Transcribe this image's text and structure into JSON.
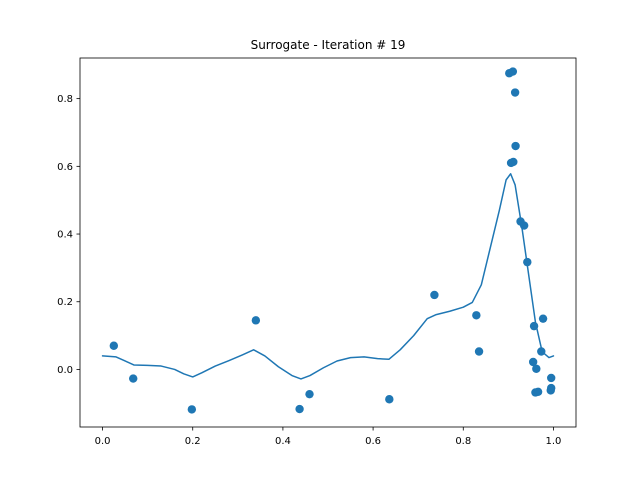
{
  "chart_data": {
    "type": "scatter",
    "title": "Surrogate - Iteration # 19",
    "xlabel": "",
    "ylabel": "",
    "xlim": [
      -0.05,
      1.05
    ],
    "ylim": [
      -0.17,
      0.92
    ],
    "xticks": [
      0.0,
      0.2,
      0.4,
      0.6,
      0.8,
      1.0
    ],
    "xtick_labels": [
      "0.0",
      "0.2",
      "0.4",
      "0.6",
      "0.8",
      "1.0"
    ],
    "yticks": [
      0.0,
      0.2,
      0.4,
      0.6,
      0.8
    ],
    "ytick_labels": [
      "0.0",
      "0.2",
      "0.4",
      "0.6",
      "0.8"
    ],
    "grid": false,
    "colors": {
      "series": "#1f77b4",
      "axes": "#000000",
      "background": "#ffffff"
    },
    "series": [
      {
        "kind": "points",
        "points": [
          {
            "x": 0.025,
            "y": 0.07
          },
          {
            "x": 0.068,
            "y": -0.027
          },
          {
            "x": 0.198,
            "y": -0.118
          },
          {
            "x": 0.34,
            "y": 0.145
          },
          {
            "x": 0.437,
            "y": -0.117
          },
          {
            "x": 0.459,
            "y": -0.073
          },
          {
            "x": 0.636,
            "y": -0.088
          },
          {
            "x": 0.736,
            "y": 0.22
          },
          {
            "x": 0.829,
            "y": 0.16
          },
          {
            "x": 0.835,
            "y": 0.053
          },
          {
            "x": 0.902,
            "y": 0.875
          },
          {
            "x": 0.91,
            "y": 0.88
          },
          {
            "x": 0.906,
            "y": 0.61
          },
          {
            "x": 0.911,
            "y": 0.613
          },
          {
            "x": 0.915,
            "y": 0.818
          },
          {
            "x": 0.916,
            "y": 0.66
          },
          {
            "x": 0.927,
            "y": 0.437
          },
          {
            "x": 0.935,
            "y": 0.425
          },
          {
            "x": 0.942,
            "y": 0.317
          },
          {
            "x": 0.957,
            "y": 0.128
          },
          {
            "x": 0.955,
            "y": 0.022
          },
          {
            "x": 0.962,
            "y": 0.002
          },
          {
            "x": 0.96,
            "y": -0.068
          },
          {
            "x": 0.966,
            "y": -0.066
          },
          {
            "x": 0.973,
            "y": 0.053
          },
          {
            "x": 0.977,
            "y": 0.15
          },
          {
            "x": 0.995,
            "y": -0.025
          },
          {
            "x": 0.995,
            "y": -0.055
          },
          {
            "x": 0.994,
            "y": -0.062
          }
        ]
      },
      {
        "kind": "line",
        "points": [
          {
            "x": 0.0,
            "y": 0.04
          },
          {
            "x": 0.03,
            "y": 0.037
          },
          {
            "x": 0.05,
            "y": 0.025
          },
          {
            "x": 0.07,
            "y": 0.013
          },
          {
            "x": 0.1,
            "y": 0.012
          },
          {
            "x": 0.13,
            "y": 0.01
          },
          {
            "x": 0.16,
            "y": 0.0
          },
          {
            "x": 0.18,
            "y": -0.013
          },
          {
            "x": 0.2,
            "y": -0.022
          },
          {
            "x": 0.22,
            "y": -0.01
          },
          {
            "x": 0.25,
            "y": 0.01
          },
          {
            "x": 0.28,
            "y": 0.026
          },
          {
            "x": 0.31,
            "y": 0.043
          },
          {
            "x": 0.335,
            "y": 0.058
          },
          {
            "x": 0.36,
            "y": 0.04
          },
          {
            "x": 0.39,
            "y": 0.008
          },
          {
            "x": 0.42,
            "y": -0.018
          },
          {
            "x": 0.44,
            "y": -0.028
          },
          {
            "x": 0.46,
            "y": -0.018
          },
          {
            "x": 0.49,
            "y": 0.005
          },
          {
            "x": 0.52,
            "y": 0.025
          },
          {
            "x": 0.55,
            "y": 0.035
          },
          {
            "x": 0.58,
            "y": 0.037
          },
          {
            "x": 0.61,
            "y": 0.032
          },
          {
            "x": 0.635,
            "y": 0.03
          },
          {
            "x": 0.66,
            "y": 0.058
          },
          {
            "x": 0.69,
            "y": 0.1
          },
          {
            "x": 0.72,
            "y": 0.15
          },
          {
            "x": 0.74,
            "y": 0.162
          },
          {
            "x": 0.77,
            "y": 0.172
          },
          {
            "x": 0.8,
            "y": 0.184
          },
          {
            "x": 0.82,
            "y": 0.198
          },
          {
            "x": 0.84,
            "y": 0.25
          },
          {
            "x": 0.86,
            "y": 0.36
          },
          {
            "x": 0.88,
            "y": 0.47
          },
          {
            "x": 0.895,
            "y": 0.56
          },
          {
            "x": 0.905,
            "y": 0.578
          },
          {
            "x": 0.915,
            "y": 0.545
          },
          {
            "x": 0.93,
            "y": 0.42
          },
          {
            "x": 0.945,
            "y": 0.28
          },
          {
            "x": 0.96,
            "y": 0.14
          },
          {
            "x": 0.975,
            "y": 0.052
          },
          {
            "x": 0.99,
            "y": 0.035
          },
          {
            "x": 1.0,
            "y": 0.04
          }
        ]
      }
    ]
  }
}
